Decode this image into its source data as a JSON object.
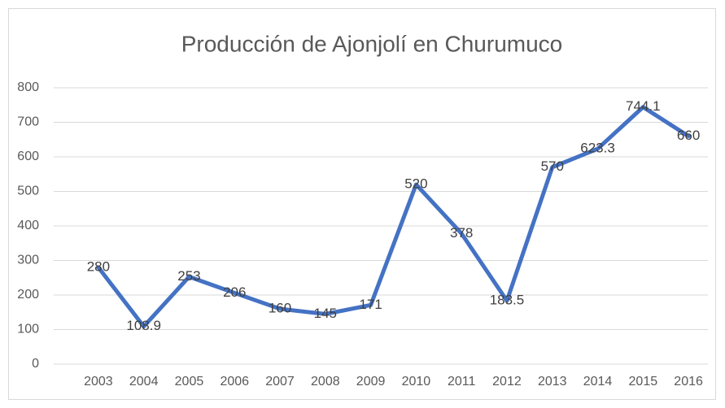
{
  "chart_data": {
    "type": "line",
    "title": "Producción de Ajonjolí en Churumuco",
    "categories": [
      "2003",
      "2004",
      "2005",
      "2006",
      "2007",
      "2008",
      "2009",
      "2010",
      "2011",
      "2012",
      "2013",
      "2014",
      "2015",
      "2016"
    ],
    "values": [
      280,
      108.9,
      253,
      206,
      160,
      145,
      171,
      520,
      378,
      183.5,
      570,
      623.3,
      744.1,
      660
    ],
    "color": "#4472c4",
    "ylim": [
      0,
      800
    ],
    "yticks": [
      0,
      100,
      200,
      300,
      400,
      500,
      600,
      700,
      800
    ],
    "grid": true
  }
}
